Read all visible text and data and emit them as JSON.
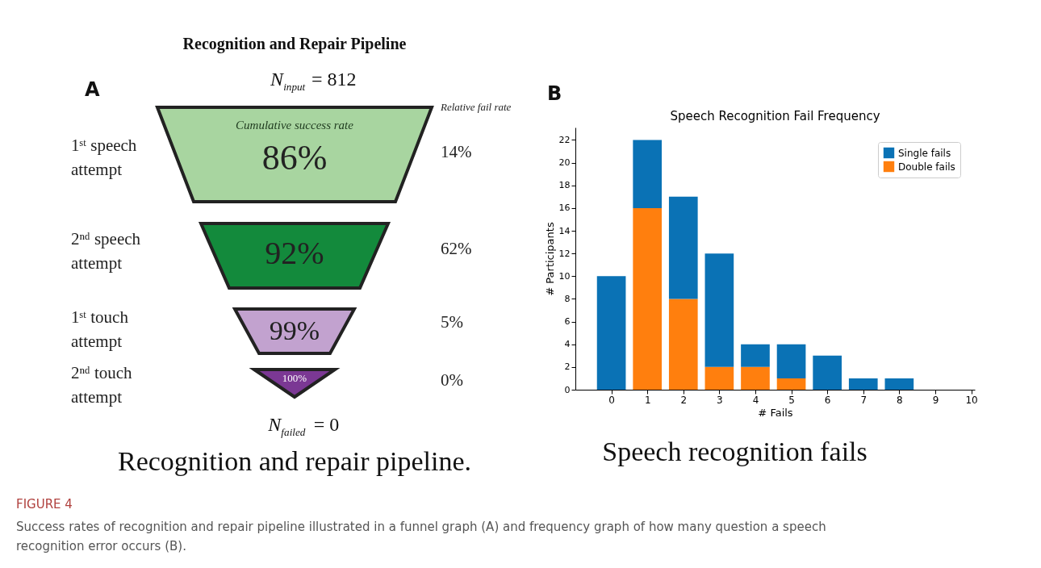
{
  "chart_data": [
    {
      "type": "other",
      "title": "Recognition and Repair Pipeline",
      "categories": [
        "1ˢᵗ speech attempt",
        "2ⁿᵈ speech attempt",
        "1ˢᵗ touch attempt",
        "2ⁿᵈ touch attempt"
      ],
      "series": [
        {
          "name": "Cumulative success rate",
          "colors": [
            "#a8d5a0",
            "#138a3c",
            "#c2a2cf",
            "#7b3894"
          ],
          "values": [
            86,
            92,
            99,
            100
          ],
          "value_labels": [
            "86%",
            "92%",
            "99%",
            "100%"
          ]
        },
        {
          "name": "Relative fail rate",
          "values": [
            14,
            62,
            5,
            0
          ],
          "value_labels": [
            "14%",
            "62%",
            "5%",
            "0%"
          ]
        }
      ],
      "annotations": [
        "A",
        "N$_{input}$ = 812",
        "N$_{failed}$ = 0",
        "Recognition and repair pipeline."
      ]
    },
    {
      "type": "bar",
      "title": "Speech Recognition Fail Frequency",
      "xlabel": "# Fails",
      "ylabel": "# Participants",
      "x": [
        0,
        1,
        2,
        3,
        4,
        5,
        6,
        7,
        8,
        9
      ],
      "stacked": true,
      "series": [
        {
          "name": "Double fails",
          "color": "#ff7f0e",
          "values": [
            0,
            16,
            8,
            2,
            2,
            1,
            0,
            0,
            0,
            0
          ]
        },
        {
          "name": "Single fails",
          "color": "#0a72b5",
          "values": [
            10,
            6,
            9,
            10,
            2,
            3,
            3,
            1,
            1,
            0
          ]
        }
      ],
      "xlim": [
        -1,
        10.1
      ],
      "xticks": [
        0,
        1,
        2,
        3,
        4,
        5,
        6,
        7,
        8,
        9,
        10
      ],
      "ylim": [
        0,
        23.1
      ],
      "yticks": [
        0,
        2,
        4,
        6,
        8,
        10,
        12,
        14,
        16,
        18,
        20,
        22
      ],
      "legend": "top right",
      "grid": false,
      "annotations": [
        "B",
        "Speech recognition fails",
        "FIGURE 4",
        "Success rates of recognition and repair pipeline illustrated in a funnel graph (A) and frequency graph of how many question a speech recognition error occurs (B)."
      ]
    }
  ]
}
